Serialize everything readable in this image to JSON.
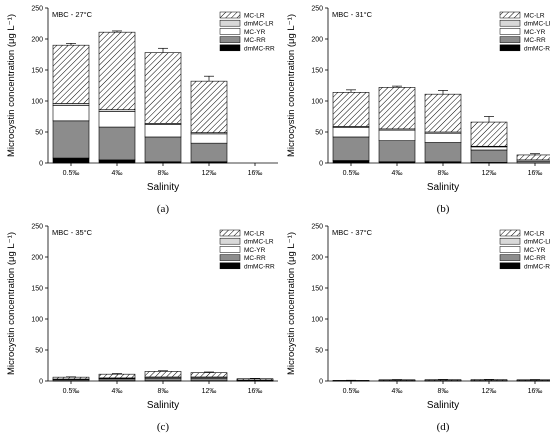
{
  "colors": {
    "MC-LR": "hatched",
    "dmMC-LR": "#d9d9d9",
    "MC-YR": "#ffffff",
    "MC-RR": "#8c8c8c",
    "dmMC-RR": "#000000"
  },
  "series_names": [
    "MC-LR",
    "dmMC-LR",
    "MC-YR",
    "MC-RR",
    "dmMC-RR"
  ],
  "chart_data": [
    {
      "type": "bar",
      "stacked": true,
      "panel_label": "(a)",
      "annotation": "MBC - 27°C",
      "xlabel": "Salinity",
      "ylabel": "Microcystin concentration (μg L⁻¹)",
      "categories": [
        "0.5‰",
        "4‰",
        "8‰",
        "12‰",
        "16‰"
      ],
      "ylim": [
        0,
        250
      ],
      "yticks": [
        0,
        50,
        100,
        150,
        200,
        250
      ],
      "legend_position": "top-right",
      "series": [
        {
          "name": "dmMC-RR",
          "values": [
            8,
            5,
            2,
            2,
            0
          ]
        },
        {
          "name": "MC-RR",
          "values": [
            60,
            53,
            40,
            30,
            0
          ]
        },
        {
          "name": "MC-YR",
          "values": [
            25,
            25,
            20,
            15,
            0
          ]
        },
        {
          "name": "dmMC-LR",
          "values": [
            3,
            3,
            2,
            2,
            0
          ]
        },
        {
          "name": "MC-LR",
          "values": [
            94,
            125,
            114,
            83,
            0
          ]
        }
      ],
      "error": [
        3,
        2,
        7,
        8,
        0
      ]
    },
    {
      "type": "bar",
      "stacked": true,
      "panel_label": "(b)",
      "annotation": "MBC - 31°C",
      "xlabel": "Salinity",
      "ylabel": "Microcystin concentration (μg L⁻¹)",
      "categories": [
        "0.5‰",
        "4‰",
        "8‰",
        "12‰",
        "16‰"
      ],
      "ylim": [
        0,
        250
      ],
      "yticks": [
        0,
        50,
        100,
        150,
        200,
        250
      ],
      "legend_position": "top-right",
      "series": [
        {
          "name": "dmMC-RR",
          "values": [
            4,
            2,
            2,
            1,
            0
          ]
        },
        {
          "name": "MC-RR",
          "values": [
            38,
            34,
            31,
            20,
            3
          ]
        },
        {
          "name": "MC-YR",
          "values": [
            15,
            17,
            15,
            5,
            2
          ]
        },
        {
          "name": "dmMC-LR",
          "values": [
            2,
            2,
            2,
            1,
            0
          ]
        },
        {
          "name": "MC-LR",
          "values": [
            55,
            67,
            61,
            39,
            8
          ]
        }
      ],
      "error": [
        4,
        2,
        6,
        9,
        2
      ]
    },
    {
      "type": "bar",
      "stacked": true,
      "panel_label": "(c)",
      "annotation": "MBC - 35°C",
      "xlabel": "Salinity",
      "ylabel": "Microcystin concentration (μg L⁻¹)",
      "categories": [
        "0.5‰",
        "4‰",
        "8‰",
        "12‰",
        "16‰"
      ],
      "ylim": [
        0,
        250
      ],
      "yticks": [
        0,
        50,
        100,
        150,
        200,
        250
      ],
      "legend_position": "top-right",
      "series": [
        {
          "name": "dmMC-RR",
          "values": [
            0.5,
            0.5,
            0.5,
            0.5,
            0.3
          ]
        },
        {
          "name": "MC-RR",
          "values": [
            2,
            3,
            4,
            4,
            1
          ]
        },
        {
          "name": "MC-YR",
          "values": [
            0.5,
            1,
            1.5,
            1.5,
            0.2
          ]
        },
        {
          "name": "dmMC-LR",
          "values": [
            0.2,
            0.5,
            0.5,
            0.5,
            0.2
          ]
        },
        {
          "name": "MC-LR",
          "values": [
            3,
            6,
            9,
            7,
            2
          ]
        }
      ],
      "error": [
        0.5,
        1,
        1,
        1,
        0.5
      ]
    },
    {
      "type": "bar",
      "stacked": true,
      "panel_label": "(d)",
      "annotation": "MBC - 37°C",
      "xlabel": "Salinity",
      "ylabel": "Microcystin concentration (μg L⁻¹)",
      "categories": [
        "0.5‰",
        "4‰",
        "8‰",
        "12‰",
        "16‰"
      ],
      "ylim": [
        0,
        250
      ],
      "yticks": [
        0,
        50,
        100,
        150,
        200,
        250
      ],
      "legend_position": "top-right",
      "series": [
        {
          "name": "dmMC-RR",
          "values": [
            0,
            0,
            0,
            0,
            0
          ]
        },
        {
          "name": "MC-RR",
          "values": [
            0.3,
            0.5,
            0.5,
            0.5,
            0.5
          ]
        },
        {
          "name": "MC-YR",
          "values": [
            0.1,
            0.2,
            0.2,
            0.2,
            0.2
          ]
        },
        {
          "name": "dmMC-LR",
          "values": [
            0.1,
            0.1,
            0.1,
            0.1,
            0.1
          ]
        },
        {
          "name": "MC-LR",
          "values": [
            0.5,
            1.2,
            1.4,
            1.5,
            1.2
          ]
        }
      ],
      "error": [
        0.2,
        0.3,
        0.3,
        0.3,
        0.3
      ]
    }
  ]
}
